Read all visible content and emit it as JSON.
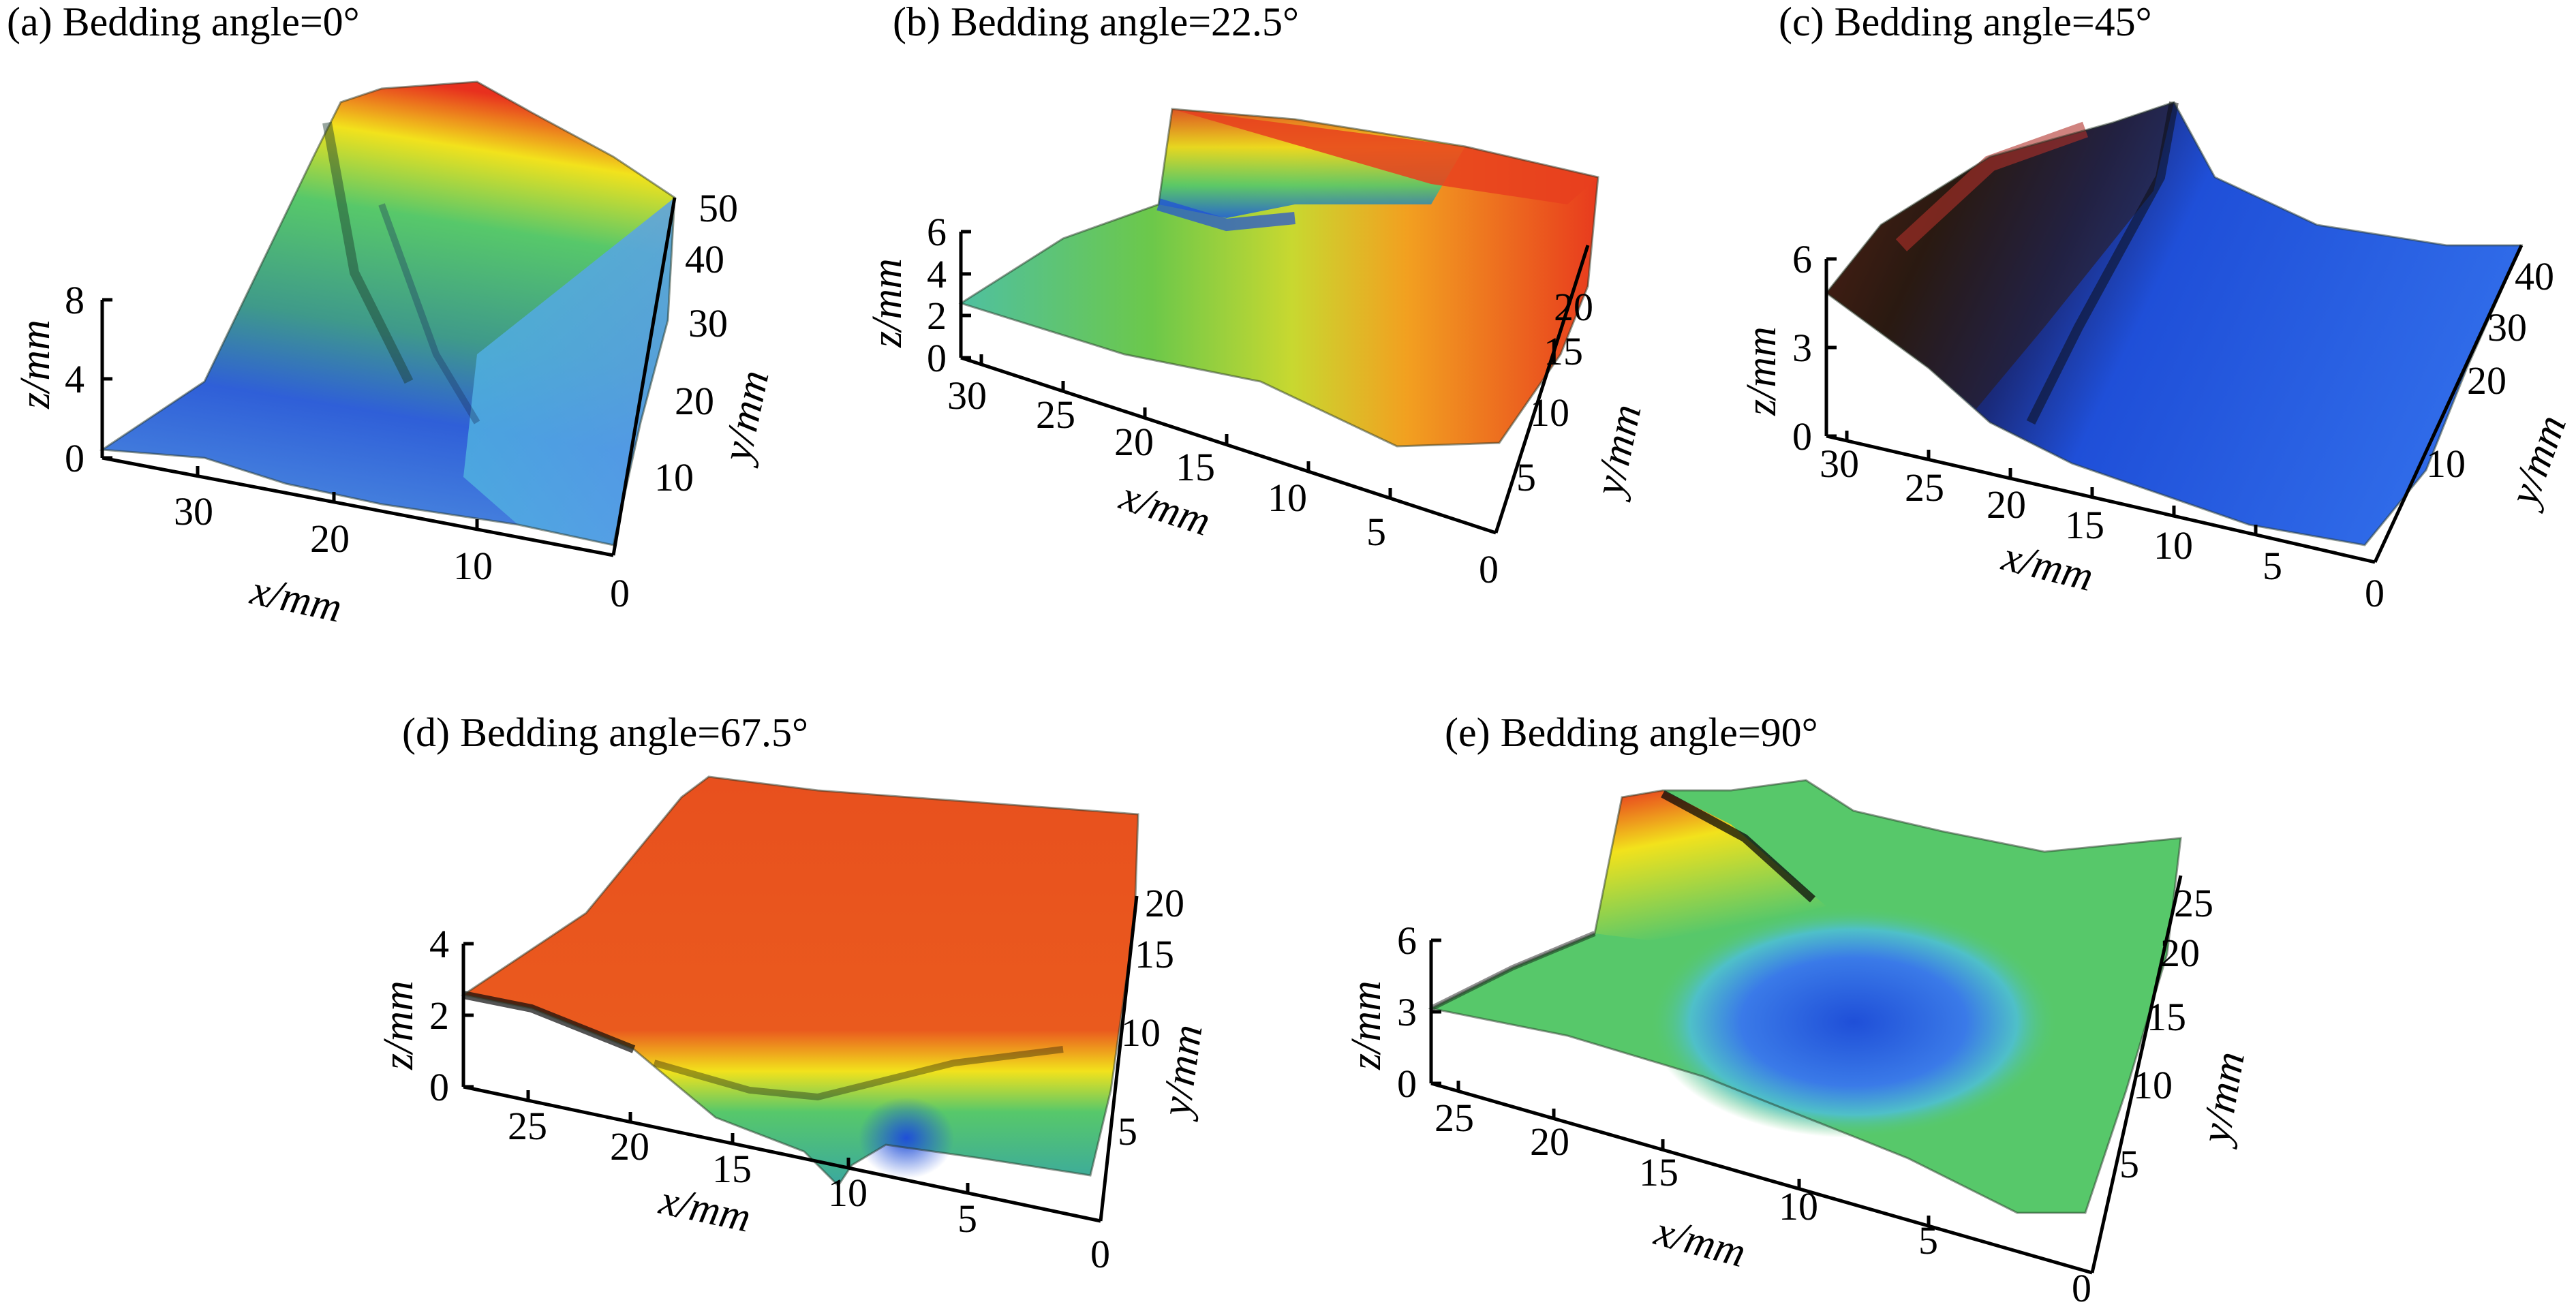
{
  "chart_data": [
    {
      "type": "surface3d",
      "title": "(a) Bedding angle=0°",
      "xlabel": "x/mm",
      "ylabel": "y/mm",
      "zlabel": "z/mm",
      "x_ticks": [
        "30",
        "20",
        "10"
      ],
      "y_ticks": [
        "0",
        "10",
        "20",
        "30",
        "40",
        "50"
      ],
      "z_ticks": [
        "0",
        "4",
        "8"
      ],
      "xlim": [
        0,
        37
      ],
      "ylim": [
        0,
        50
      ],
      "zlim": [
        0,
        8
      ],
      "dominant_colors": [
        "#1f4fd8",
        "#4fb0e0",
        "#57c86a",
        "#f2e21c",
        "#e8301e"
      ]
    },
    {
      "type": "surface3d",
      "title": "(b) Bedding angle=22.5°",
      "xlabel": "x/mm",
      "ylabel": "y/mm",
      "zlabel": "z/mm",
      "x_ticks": [
        "30",
        "25",
        "20",
        "15",
        "10",
        "5"
      ],
      "y_ticks": [
        "0",
        "5",
        "10",
        "15",
        "20"
      ],
      "z_ticks": [
        "0",
        "2",
        "4",
        "6"
      ],
      "xlim": [
        0,
        32
      ],
      "ylim": [
        0,
        22
      ],
      "zlim": [
        0,
        6
      ],
      "dominant_colors": [
        "#57c86a",
        "#a6d83a",
        "#f2e21c",
        "#f08a2a",
        "#e8301e"
      ]
    },
    {
      "type": "surface3d",
      "title": "(c) Bedding angle=45°",
      "xlabel": "x/mm",
      "ylabel": "y/mm",
      "zlabel": "z/mm",
      "x_ticks": [
        "30",
        "25",
        "20",
        "15",
        "10",
        "5"
      ],
      "y_ticks": [
        "0",
        "10",
        "20",
        "30",
        "40"
      ],
      "z_ticks": [
        "0",
        "3",
        "6"
      ],
      "xlim": [
        0,
        32
      ],
      "ylim": [
        0,
        42
      ],
      "zlim": [
        0,
        6
      ],
      "dominant_colors": [
        "#1f4fd8",
        "#2f5fe0",
        "#3a2a18",
        "#c0402a"
      ]
    },
    {
      "type": "surface3d",
      "title": "(d) Bedding angle=67.5°",
      "xlabel": "x/mm",
      "ylabel": "y/mm",
      "zlabel": "z/mm",
      "x_ticks": [
        "25",
        "20",
        "15",
        "10",
        "5"
      ],
      "y_ticks": [
        "0",
        "5",
        "10",
        "15",
        "20"
      ],
      "z_ticks": [
        "0",
        "2",
        "4"
      ],
      "xlim": [
        0,
        28
      ],
      "ylim": [
        0,
        21
      ],
      "zlim": [
        0,
        4
      ],
      "dominant_colors": [
        "#e8501e",
        "#f2e21c",
        "#57c86a",
        "#1f4fd8"
      ]
    },
    {
      "type": "surface3d",
      "title": "(e) Bedding angle=90°",
      "xlabel": "x/mm",
      "ylabel": "y/mm",
      "zlabel": "z/mm",
      "x_ticks": [
        "25",
        "20",
        "15",
        "10",
        "5"
      ],
      "y_ticks": [
        "0",
        "5",
        "10",
        "15",
        "20",
        "25"
      ],
      "z_ticks": [
        "0",
        "3",
        "6"
      ],
      "xlim": [
        0,
        28
      ],
      "ylim": [
        0,
        27
      ],
      "zlim": [
        0,
        6
      ],
      "dominant_colors": [
        "#57c86a",
        "#4fb0e0",
        "#1f4fd8",
        "#f2e21c",
        "#e8301e"
      ]
    }
  ]
}
